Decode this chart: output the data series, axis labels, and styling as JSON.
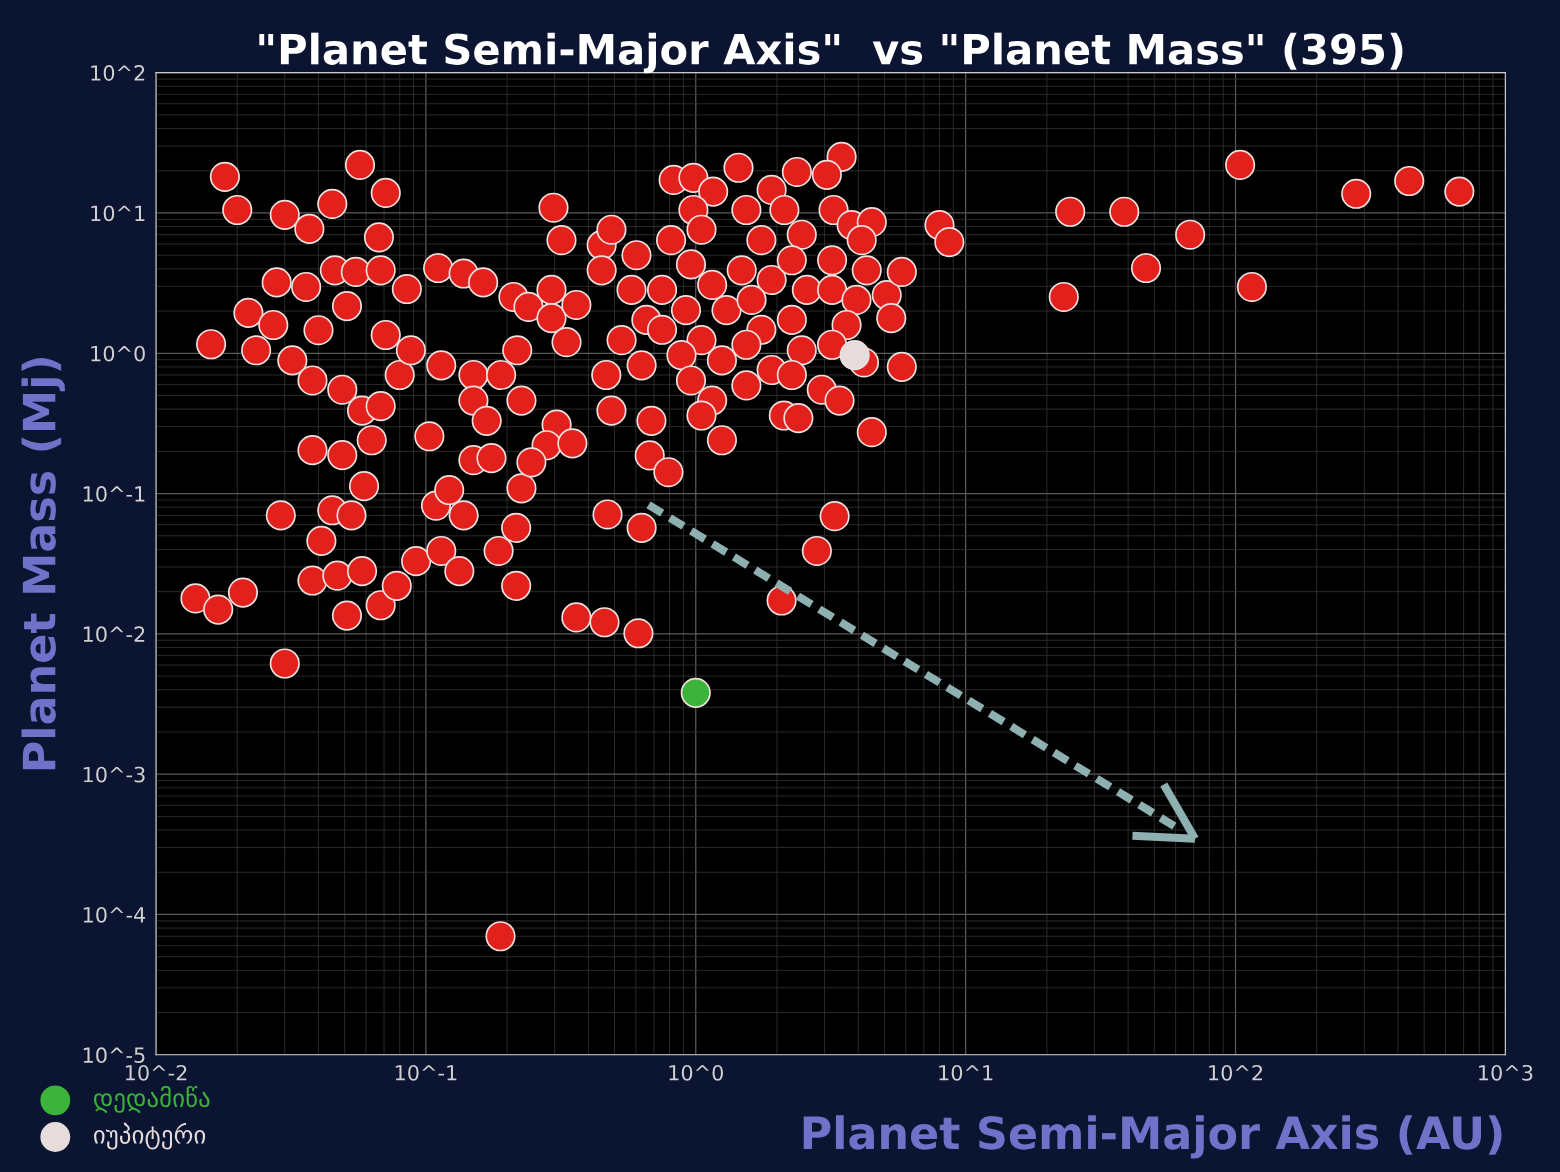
{
  "chart_data": {
    "type": "scatter",
    "title": "\"Planet Semi-Major Axis\"  vs \"Planet Mass\" (395)",
    "xlabel": "Planet Semi-Major Axis (AU)",
    "ylabel": "Planet Mass (Mj)",
    "log": "xy",
    "grid": true,
    "legend": "bottom left",
    "marker": "circle",
    "xlim": [
      0.01,
      1000
    ],
    "ylim": [
      1e-05,
      100
    ],
    "xticks": [
      {
        "value": 0.01,
        "label": "10^-2"
      },
      {
        "value": 0.1,
        "label": "10^-1"
      },
      {
        "value": 1,
        "label": "10^0"
      },
      {
        "value": 10,
        "label": "10^1"
      },
      {
        "value": 100,
        "label": "10^2"
      },
      {
        "value": 1000,
        "label": "10^3"
      }
    ],
    "yticks": [
      {
        "value": 1e-05,
        "label": "10^-5"
      },
      {
        "value": 0.0001,
        "label": "10^-4"
      },
      {
        "value": 0.001,
        "label": "10^-3"
      },
      {
        "value": 0.01,
        "label": "10^-2"
      },
      {
        "value": 0.1,
        "label": "10^-1"
      },
      {
        "value": 1,
        "label": "10^0"
      },
      {
        "value": 10,
        "label": "10^1"
      },
      {
        "value": 100,
        "label": "10^2"
      }
    ],
    "series": [
      {
        "color": "#e3211c",
        "x": [
          0.018,
          0.02,
          0.016,
          0.014,
          0.017,
          0.021,
          0.03,
          0.029,
          0.057,
          0.071,
          0.045,
          0.03,
          0.037,
          0.067,
          0.028,
          0.022,
          0.036,
          0.046,
          0.055,
          0.068,
          0.085,
          0.051,
          0.04,
          0.032,
          0.038,
          0.049,
          0.058,
          0.063,
          0.038,
          0.049,
          0.059,
          0.045,
          0.053,
          0.041,
          0.038,
          0.047,
          0.058,
          0.051,
          0.068,
          0.078,
          0.092,
          0.08,
          0.088,
          0.071,
          0.103,
          0.111,
          0.138,
          0.163,
          0.114,
          0.15,
          0.15,
          0.168,
          0.15,
          0.175,
          0.109,
          0.122,
          0.138,
          0.114,
          0.133,
          0.186,
          0.19,
          0.218,
          0.226,
          0.226,
          0.216,
          0.216,
          0.189,
          0.211,
          0.24,
          0.292,
          0.297,
          0.318,
          0.292,
          0.332,
          0.361,
          0.305,
          0.28,
          0.349,
          0.246,
          0.361,
          0.459,
          0.613,
          0.471,
          0.63,
          0.675,
          0.792,
          0.466,
          0.487,
          0.448,
          0.448,
          0.487,
          0.603,
          0.578,
          0.531,
          0.656,
          0.63,
          0.685,
          0.828,
          0.98,
          1.16,
          1.44,
          0.98,
          0.81,
          1.05,
          0.96,
          0.75,
          1.15,
          0.92,
          1.3,
          0.75,
          1.05,
          0.885,
          1.25,
          0.96,
          1.15,
          1.05,
          1.25,
          1.54,
          1.75,
          1.91,
          1.48,
          1.91,
          1.61,
          1.75,
          1.54,
          1.91,
          1.54,
          2.37,
          2.13,
          2.47,
          2.27,
          2.58,
          2.27,
          2.47,
          2.27,
          2.12,
          2.4,
          2.08,
          2.81,
          3.27,
          2.93,
          3.41,
          3.47,
          3.06,
          3.24,
          3.78,
          4.49,
          4.12,
          3.2,
          4.3,
          3.2,
          3.94,
          3.62,
          3.2,
          5.1,
          5.3,
          5.8,
          5.8,
          4.49,
          4.2,
          8.0,
          8.7,
          24.4,
          23.1,
          38.7,
          46.6,
          67.9,
          104,
          115,
          280,
          440,
          675,
          0.0235,
          0.0272,
          0.068
        ],
        "values": [
          18.1,
          10.5,
          1.16,
          0.0179,
          0.0149,
          0.0197,
          0.00615,
          0.07,
          22.0,
          13.9,
          11.6,
          9.7,
          7.7,
          6.7,
          3.2,
          1.94,
          2.97,
          3.9,
          3.8,
          3.9,
          2.87,
          2.17,
          1.46,
          0.89,
          0.64,
          0.55,
          0.39,
          0.24,
          0.204,
          0.188,
          0.113,
          0.076,
          0.07,
          0.046,
          0.024,
          0.026,
          0.028,
          0.0135,
          0.016,
          0.022,
          0.033,
          0.7,
          1.05,
          1.35,
          0.256,
          4.05,
          3.7,
          3.2,
          0.82,
          0.7,
          0.46,
          0.33,
          0.173,
          0.179,
          0.082,
          0.106,
          0.07,
          0.039,
          0.028,
          0.039,
          0.7,
          1.05,
          0.46,
          0.109,
          0.057,
          0.022,
          7e-05,
          2.52,
          2.14,
          2.83,
          10.9,
          6.4,
          1.78,
          1.2,
          2.21,
          0.31,
          0.221,
          0.228,
          0.167,
          0.0131,
          0.0121,
          0.0101,
          0.071,
          0.057,
          0.187,
          0.142,
          0.7,
          0.39,
          5.9,
          3.9,
          7.6,
          5.0,
          2.83,
          1.24,
          1.73,
          0.82,
          0.33,
          17.2,
          17.8,
          14.2,
          21.0,
          10.5,
          6.4,
          7.6,
          4.3,
          2.83,
          3.07,
          2.03,
          2.03,
          1.47,
          1.24,
          0.97,
          0.89,
          0.64,
          0.46,
          0.36,
          0.24,
          10.5,
          6.4,
          14.6,
          3.9,
          3.33,
          2.4,
          1.47,
          1.15,
          0.76,
          0.59,
          19.6,
          10.5,
          7.0,
          4.6,
          2.83,
          1.73,
          1.05,
          0.7,
          0.36,
          0.345,
          0.0173,
          0.039,
          0.069,
          0.55,
          0.46,
          25.1,
          18.7,
          10.5,
          8.2,
          8.6,
          6.4,
          4.6,
          3.9,
          2.83,
          2.4,
          1.59,
          1.15,
          2.6,
          1.78,
          3.8,
          0.8,
          0.274,
          0.86,
          8.2,
          6.2,
          10.2,
          2.52,
          10.2,
          4.05,
          7.0,
          22.0,
          2.97,
          13.7,
          16.9,
          14.2,
          1.05,
          1.59,
          0.42
        ]
      },
      {
        "name": "დედამიწა",
        "color": "#3cb43c",
        "x": [
          1.0
        ],
        "values": [
          0.0038
        ]
      },
      {
        "name": "იუპიტერი",
        "color": "#e6dcdc",
        "x": [
          3.88
        ],
        "values": [
          0.97
        ]
      }
    ]
  }
}
